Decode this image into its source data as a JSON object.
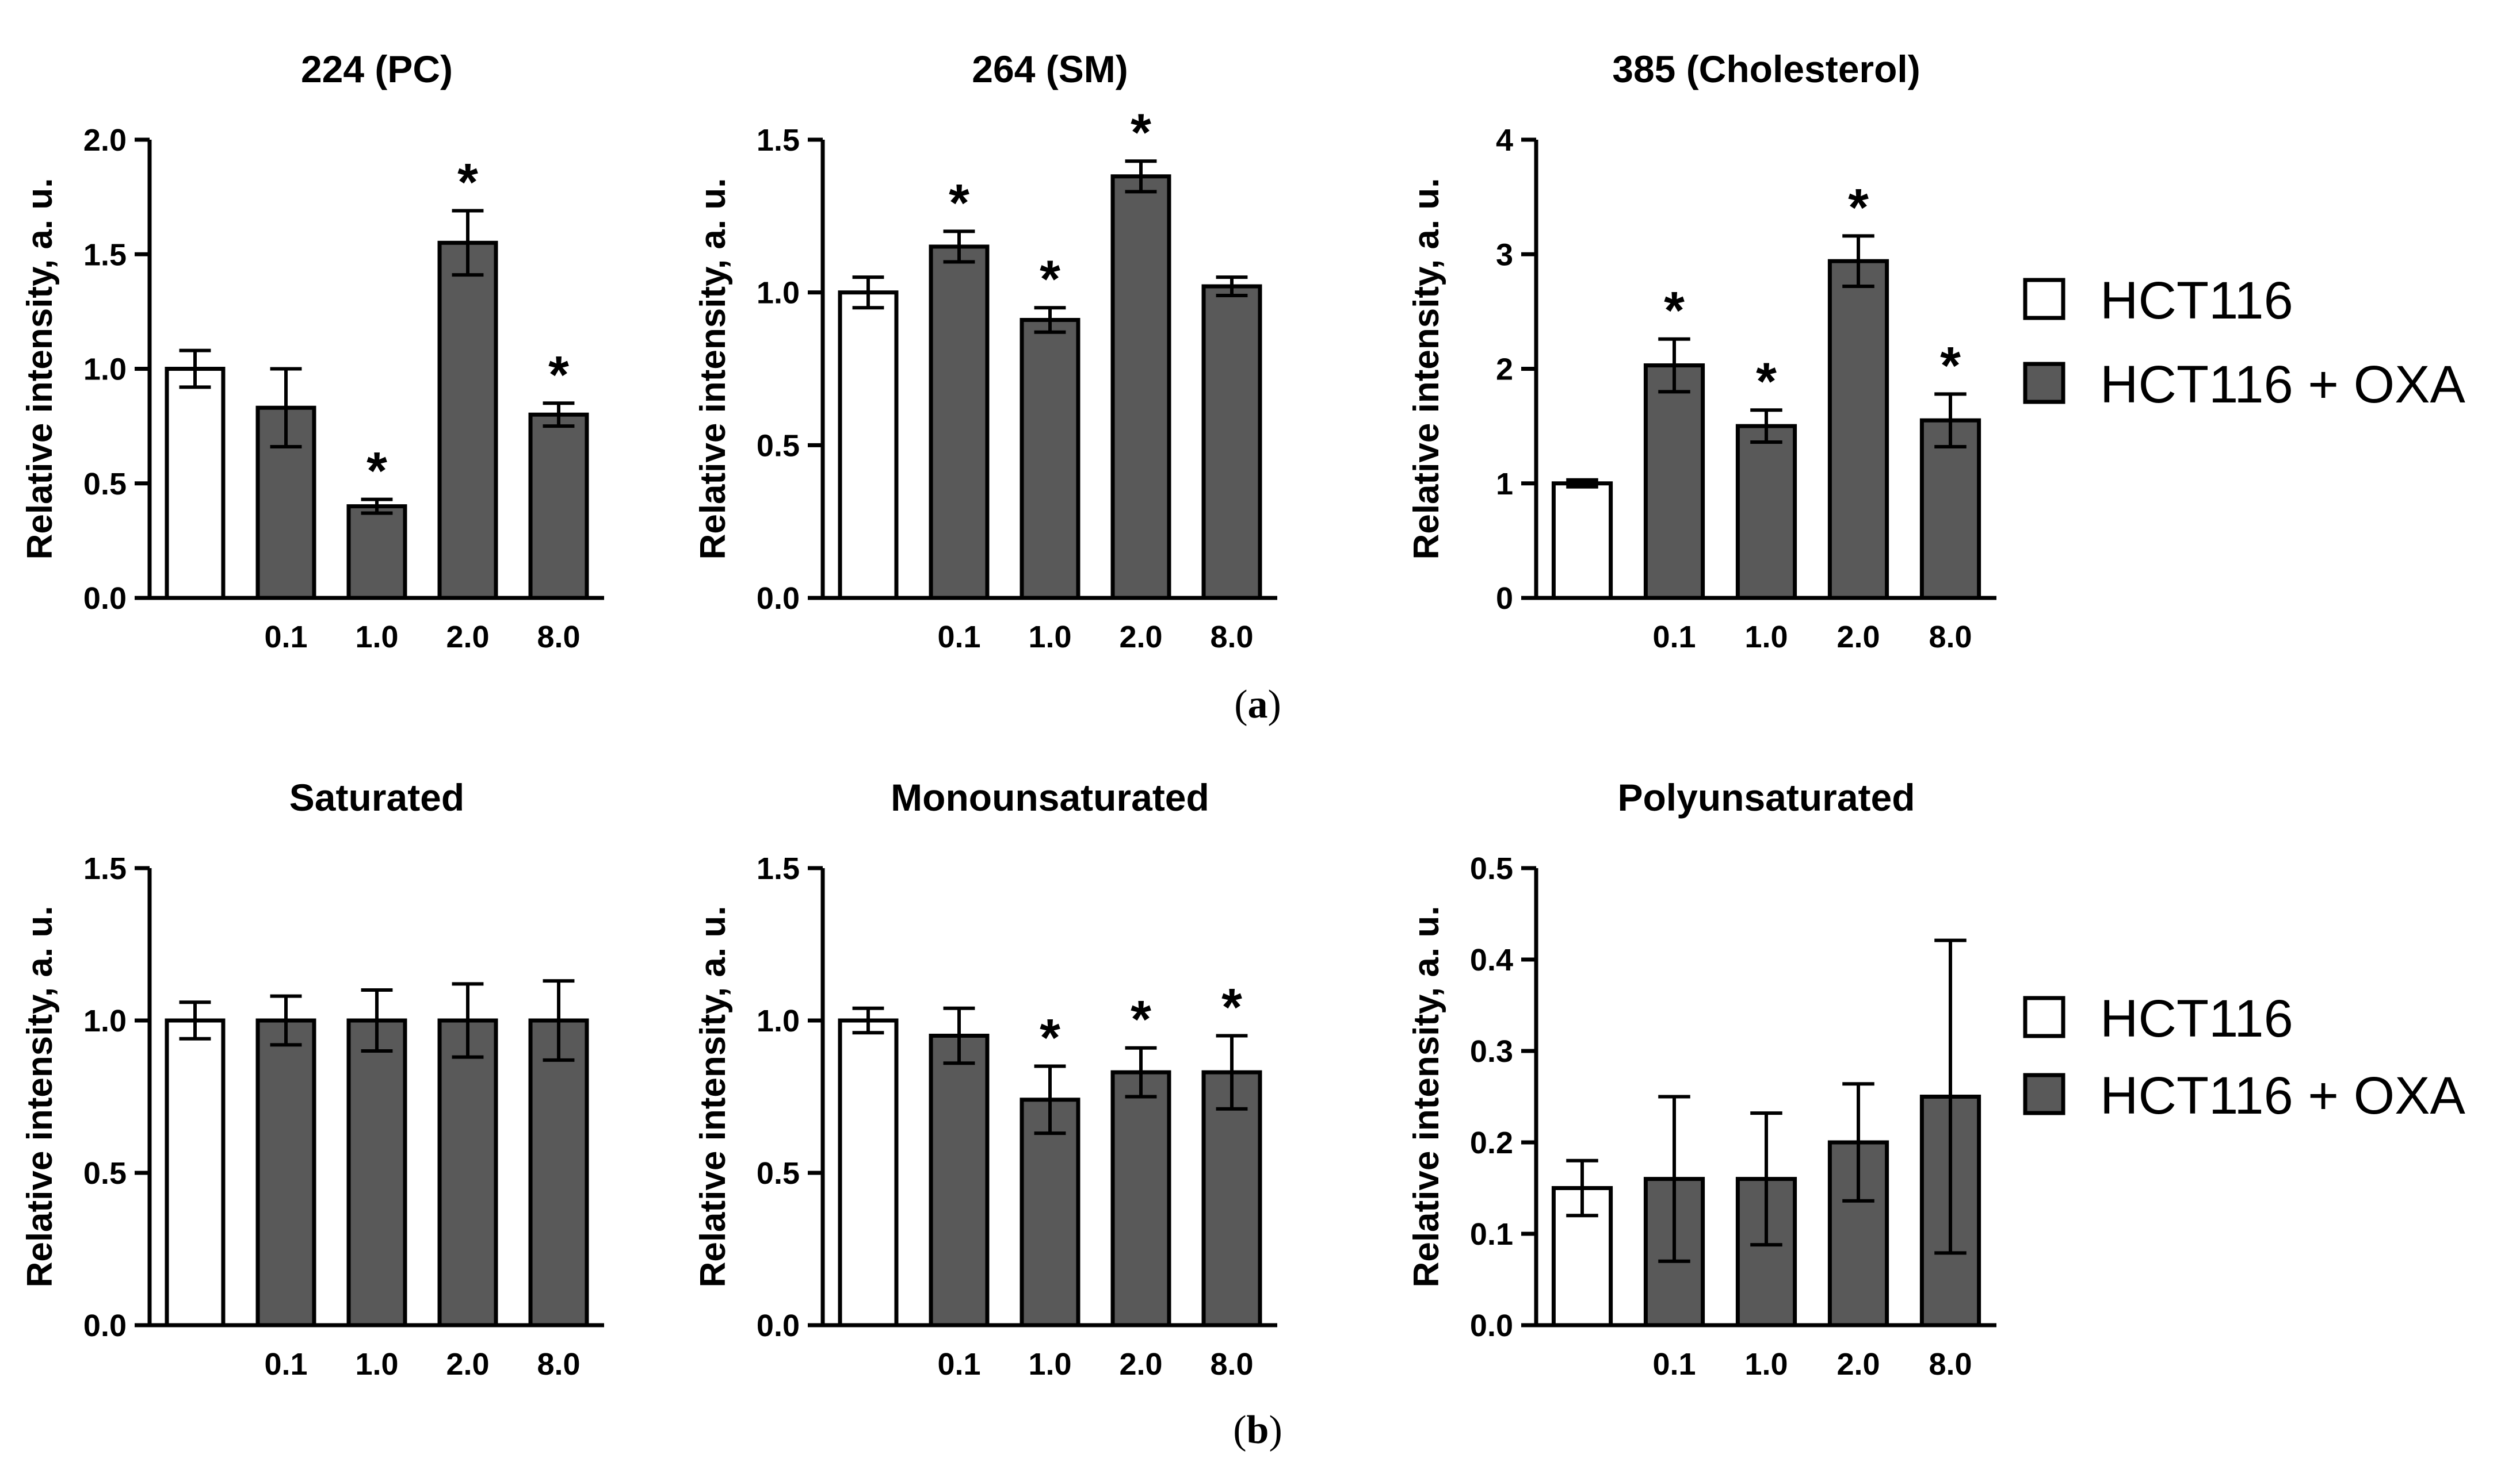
{
  "colors": {
    "control_fill": "#ffffff",
    "treated_fill": "#595959",
    "stroke": "#000000"
  },
  "legend": {
    "control_label": "HCT116",
    "treated_label": "HCT116 + OXA"
  },
  "panel_labels": {
    "a": "a",
    "b": "b"
  },
  "chart_data": [
    {
      "type": "bar",
      "title": "224 (PC)",
      "ylabel": "Relative intensity, a. u.",
      "categories": [
        "",
        "0.1",
        "1.0",
        "2.0",
        "8.0"
      ],
      "values": [
        1.0,
        0.83,
        0.4,
        1.55,
        0.8
      ],
      "errors": [
        0.08,
        0.17,
        0.03,
        0.14,
        0.05
      ],
      "significant": [
        false,
        false,
        true,
        true,
        true
      ],
      "ylim": [
        0,
        2.0
      ],
      "yticks": [
        "0.0",
        "0.5",
        "1.0",
        "1.5",
        "2.0"
      ],
      "series": [
        "HCT116",
        "HCT116 + OXA",
        "HCT116 + OXA",
        "HCT116 + OXA",
        "HCT116 + OXA"
      ]
    },
    {
      "type": "bar",
      "title": "264 (SM)",
      "ylabel": "Relative intensity, a. u.",
      "categories": [
        "",
        "0.1",
        "1.0",
        "2.0",
        "8.0"
      ],
      "values": [
        1.0,
        1.15,
        0.91,
        1.38,
        1.02
      ],
      "errors": [
        0.05,
        0.05,
        0.04,
        0.05,
        0.03
      ],
      "significant": [
        false,
        true,
        true,
        true,
        false
      ],
      "ylim": [
        0,
        1.5
      ],
      "yticks": [
        "0.0",
        "0.5",
        "1.0",
        "1.5"
      ],
      "series": [
        "HCT116",
        "HCT116 + OXA",
        "HCT116 + OXA",
        "HCT116 + OXA",
        "HCT116 + OXA"
      ]
    },
    {
      "type": "bar",
      "title": "385 (Cholesterol)",
      "ylabel": "Relative intensity, a. u.",
      "categories": [
        "",
        "0.1",
        "1.0",
        "2.0",
        "8.0"
      ],
      "values": [
        1.0,
        2.03,
        1.5,
        2.94,
        1.55
      ],
      "errors": [
        0.03,
        0.23,
        0.14,
        0.22,
        0.23
      ],
      "significant": [
        false,
        true,
        true,
        true,
        true
      ],
      "ylim": [
        0,
        4
      ],
      "yticks": [
        "0",
        "1",
        "2",
        "3",
        "4"
      ],
      "series": [
        "HCT116",
        "HCT116 + OXA",
        "HCT116 + OXA",
        "HCT116 + OXA",
        "HCT116 + OXA"
      ]
    },
    {
      "type": "bar",
      "title": "Saturated",
      "ylabel": "Relative intensity, a. u.",
      "categories": [
        "",
        "0.1",
        "1.0",
        "2.0",
        "8.0"
      ],
      "values": [
        1.0,
        1.0,
        1.0,
        1.0,
        1.0
      ],
      "errors": [
        0.06,
        0.08,
        0.1,
        0.12,
        0.13
      ],
      "significant": [
        false,
        false,
        false,
        false,
        false
      ],
      "ylim": [
        0,
        1.5
      ],
      "yticks": [
        "0.0",
        "0.5",
        "1.0",
        "1.5"
      ],
      "series": [
        "HCT116",
        "HCT116 + OXA",
        "HCT116 + OXA",
        "HCT116 + OXA",
        "HCT116 + OXA"
      ]
    },
    {
      "type": "bar",
      "title": "Monounsaturated",
      "ylabel": "Relative intensity, a. u.",
      "categories": [
        "",
        "0.1",
        "1.0",
        "2.0",
        "8.0"
      ],
      "values": [
        1.0,
        0.95,
        0.74,
        0.83,
        0.83
      ],
      "errors": [
        0.04,
        0.09,
        0.11,
        0.08,
        0.12
      ],
      "significant": [
        false,
        false,
        true,
        true,
        true
      ],
      "ylim": [
        0,
        1.5
      ],
      "yticks": [
        "0.0",
        "0.5",
        "1.0",
        "1.5"
      ],
      "series": [
        "HCT116",
        "HCT116 + OXA",
        "HCT116 + OXA",
        "HCT116 + OXA",
        "HCT116 + OXA"
      ]
    },
    {
      "type": "bar",
      "title": "Polyunsaturated",
      "ylabel": "Relative intensity, a. u.",
      "categories": [
        "",
        "0.1",
        "1.0",
        "2.0",
        "8.0"
      ],
      "values": [
        0.15,
        0.16,
        0.16,
        0.2,
        0.25
      ],
      "errors": [
        0.03,
        0.09,
        0.072,
        0.064,
        0.171
      ],
      "significant": [
        false,
        false,
        false,
        false,
        false
      ],
      "ylim": [
        0,
        0.5
      ],
      "yticks": [
        "0.0",
        "0.1",
        "0.2",
        "0.3",
        "0.4",
        "0.5"
      ],
      "series": [
        "HCT116",
        "HCT116 + OXA",
        "HCT116 + OXA",
        "HCT116 + OXA",
        "HCT116 + OXA"
      ]
    }
  ]
}
